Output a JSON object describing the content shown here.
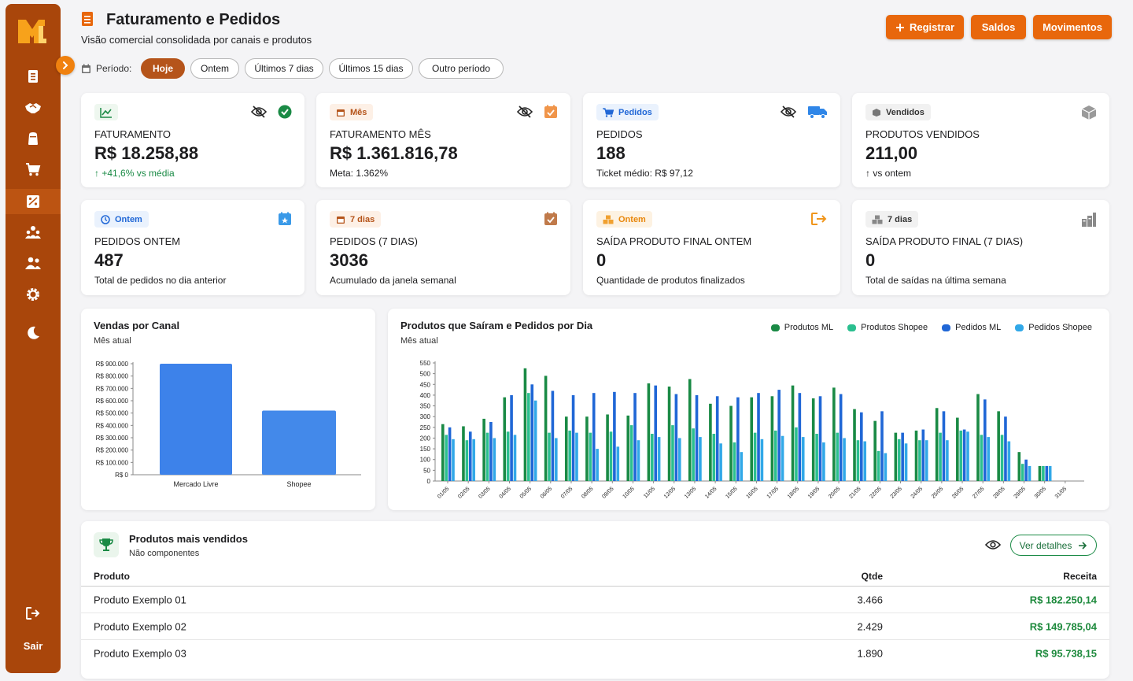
{
  "sidebar": {
    "logo": "ML",
    "nav": [
      "clipboard-icon",
      "handshake-icon",
      "box-icon",
      "cart-icon",
      "report-icon",
      "team-icon",
      "users-icon",
      "gear-icon",
      "moon-icon"
    ],
    "active_index": 4,
    "logout_label": "Sair"
  },
  "header": {
    "title": "Faturamento e Pedidos",
    "subtitle": "Visão comercial consolidada por canais e produtos",
    "buttons": {
      "registrar": "Registrar",
      "saldos": "Saldos",
      "movimentos": "Movimentos"
    }
  },
  "periodo": {
    "label": "Período:",
    "options": [
      "Hoje",
      "Ontem",
      "Últimos 7 dias",
      "Últimos 15 dias",
      "Outro período"
    ],
    "selected": "Hoje"
  },
  "kpis": [
    {
      "badge": "",
      "label": "Faturamento",
      "value": "R$ 18.258,88",
      "note": "↑ +41,6% vs média"
    },
    {
      "badge": "Mês",
      "label": "Faturamento mês",
      "value": "R$ 1.361.816,78",
      "note": "Meta: 1.362%"
    },
    {
      "badge": "Pedidos",
      "label": "Pedidos",
      "value": "188",
      "note": "Ticket médio: R$ 97,12"
    },
    {
      "badge": "Vendidos",
      "label": "Produtos vendidos",
      "value": "211,00",
      "note": "↑ vs ontem"
    },
    {
      "badge": "Ontem",
      "label": "Pedidos ontem",
      "value": "487",
      "note": "Total de pedidos no dia anterior"
    },
    {
      "badge": "7 dias",
      "label": "Pedidos (7 dias)",
      "value": "3036",
      "note": "Acumulado da janela semanal"
    },
    {
      "badge": "Ontem",
      "label": "Saída produto final ontem",
      "value": "0",
      "note": "Quantidade de produtos finalizados"
    },
    {
      "badge": "7 dias",
      "label": "Saída produto final (7 dias)",
      "value": "0",
      "note": "Total de saídas na última semana"
    }
  ],
  "colors": {
    "accent": "#e8670c",
    "sidebar": "#a9460b",
    "green_ml": "#1a8a45",
    "green_shopee": "#2bbf8f",
    "blue_ml": "#2067d6",
    "blue_shopee": "#31a8e8"
  },
  "canal_chart": {
    "title": "Vendas por Canal",
    "subtitle": "Mês atual"
  },
  "daily_chart": {
    "title": "Produtos que Saíram e Pedidos por Dia",
    "subtitle": "Mês atual"
  },
  "chart_data": [
    {
      "type": "bar",
      "title": "Vendas por Canal",
      "categories": [
        "Mercado Livre",
        "Shopee"
      ],
      "values": [
        900000,
        520000
      ],
      "ylim": [
        0,
        900000
      ],
      "yticks": [
        "R$ 0",
        "R$ 100.000",
        "R$ 200.000",
        "R$ 300.000",
        "R$ 400.000",
        "R$ 500.000",
        "R$ 600.000",
        "R$ 700.000",
        "R$ 800.000",
        "R$ 900.000"
      ],
      "grid": false,
      "legend": "none"
    },
    {
      "type": "bar",
      "title": "Produtos que Saíram e Pedidos por Dia",
      "legend": "top-right",
      "grid": false,
      "ylim": [
        0,
        550
      ],
      "yticks": [
        0,
        50,
        100,
        150,
        200,
        250,
        300,
        350,
        400,
        450,
        500,
        550
      ],
      "categories": [
        "01/05",
        "02/05",
        "03/05",
        "04/05",
        "05/05",
        "06/05",
        "07/05",
        "08/05",
        "09/05",
        "10/05",
        "11/05",
        "12/05",
        "13/05",
        "14/05",
        "15/05",
        "16/05",
        "17/05",
        "18/05",
        "19/05",
        "20/05",
        "21/05",
        "22/05",
        "23/05",
        "24/05",
        "25/05",
        "26/05",
        "27/05",
        "28/05",
        "29/05",
        "30/05",
        "31/05"
      ],
      "series": [
        {
          "name": "Produtos ML",
          "values": [
            265,
            255,
            290,
            390,
            525,
            490,
            300,
            300,
            310,
            305,
            455,
            440,
            475,
            360,
            350,
            390,
            395,
            445,
            385,
            435,
            335,
            280,
            225,
            235,
            340,
            295,
            405,
            325,
            135,
            70,
            0
          ]
        },
        {
          "name": "Produtos Shopee",
          "values": [
            215,
            190,
            225,
            230,
            410,
            225,
            235,
            225,
            230,
            260,
            220,
            260,
            245,
            220,
            180,
            225,
            235,
            250,
            220,
            225,
            190,
            140,
            195,
            190,
            225,
            235,
            215,
            215,
            80,
            70,
            0
          ]
        },
        {
          "name": "Pedidos ML",
          "values": [
            250,
            230,
            275,
            400,
            450,
            420,
            400,
            410,
            415,
            410,
            445,
            405,
            400,
            395,
            390,
            410,
            425,
            410,
            395,
            405,
            320,
            325,
            225,
            240,
            325,
            240,
            380,
            300,
            100,
            70,
            0
          ]
        },
        {
          "name": "Pedidos Shopee",
          "values": [
            195,
            195,
            200,
            215,
            375,
            200,
            225,
            150,
            160,
            190,
            205,
            200,
            205,
            175,
            135,
            195,
            210,
            205,
            180,
            200,
            185,
            130,
            175,
            190,
            190,
            230,
            205,
            185,
            70,
            70,
            0
          ]
        }
      ]
    }
  ],
  "top_products": {
    "title": "Produtos mais vendidos",
    "subtitle": "Não componentes",
    "details_button": "Ver detalhes",
    "columns": [
      "Produto",
      "Qtde",
      "Receita"
    ],
    "rows": [
      [
        "Produto Exemplo 01",
        "3.466",
        "R$ 182.250,14"
      ],
      [
        "Produto Exemplo 02",
        "2.429",
        "R$ 149.785,04"
      ],
      [
        "Produto Exemplo 03",
        "1.890",
        "R$ 95.738,15"
      ]
    ]
  }
}
